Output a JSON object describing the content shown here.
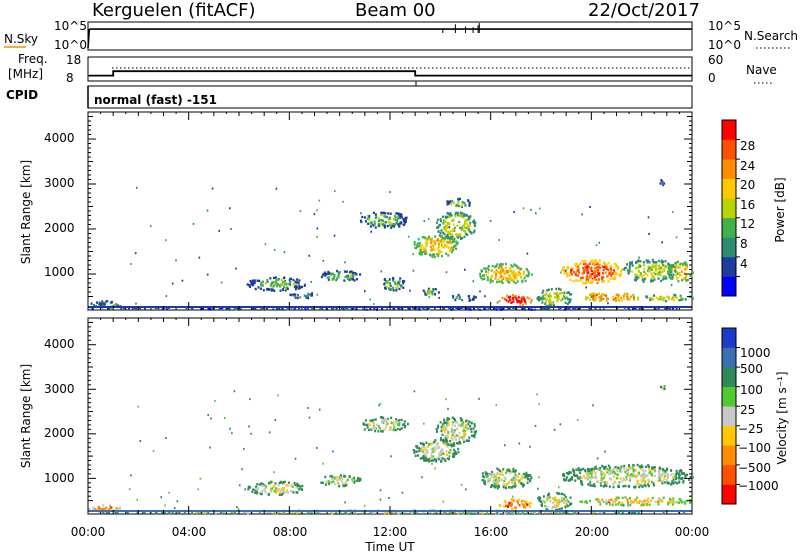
{
  "header": {
    "station": "Kerguelen (fitACF)",
    "beam": "Beam 00",
    "date": "22/Oct/2017"
  },
  "noise_panel": {
    "left_label": "N.Sky",
    "left_ticks": [
      "10^5",
      "10^0"
    ],
    "right_label": "N.Search",
    "right_ticks": [
      "10^5",
      "10^0"
    ]
  },
  "freq_panel": {
    "left_label_1": "Freq.",
    "left_label_2": "[MHz]",
    "left_ticks": [
      "18",
      "8"
    ],
    "right_label": "Nave",
    "right_ticks": [
      "60",
      "0"
    ],
    "cpid_label": "CPID",
    "mode_text": "normal (fast) -151"
  },
  "time_axis": {
    "ticks": [
      "00:00",
      "04:00",
      "08:00",
      "12:00",
      "16:00",
      "20:00",
      "00:00"
    ],
    "label": "Time UT"
  },
  "range_axis": {
    "label": "Slant Range [km]",
    "ticks": [
      "1000",
      "2000",
      "3000",
      "4000"
    ]
  },
  "power_colorbar": {
    "label": "Power [dB]",
    "ticks": [
      "4",
      "8",
      "12",
      "16",
      "20",
      "24",
      "28"
    ],
    "colors": [
      "#0000ff",
      "#1e3c9f",
      "#2f8a72",
      "#3fb24a",
      "#b8d400",
      "#ffc800",
      "#ff8c00",
      "#ff5000",
      "#ff0000"
    ]
  },
  "velocity_colorbar": {
    "label": "Velocity [m s⁻¹]",
    "ticks": [
      "1000",
      "500",
      "100",
      "25",
      "−25",
      "−100",
      "−500",
      "−1000"
    ],
    "colors": [
      "#1a3cc8",
      "#3c6eb4",
      "#2e8b57",
      "#52c832",
      "#c8c8c8",
      "#ffc800",
      "#ff8c00",
      "#ff5000",
      "#ff0000"
    ]
  },
  "chart_data": [
    {
      "type": "line",
      "name": "noise",
      "x_range_hours": [
        0,
        24
      ],
      "segments": [
        {
          "x": [
            0.0,
            0.05,
            0.1,
            24.0
          ],
          "y_log": [
            0,
            4.2,
            4.3,
            4.3
          ]
        }
      ]
    },
    {
      "type": "line",
      "name": "frequency",
      "x_range_hours": [
        0,
        24
      ],
      "y_range": [
        8,
        18
      ],
      "frequency_mhz": {
        "x": [
          0,
          1,
          1,
          13,
          13,
          24
        ],
        "y": [
          10,
          10,
          12,
          12,
          10,
          10
        ]
      }
    },
    {
      "type": "heatmap",
      "name": "power",
      "x_range_hours": [
        0,
        24
      ],
      "y_range_km": [
        200,
        4600
      ],
      "y_ticks": [
        1000,
        2000,
        3000,
        4000
      ],
      "blobs": [
        {
          "t0": 0.0,
          "t1": 23.8,
          "r0": 230,
          "r1": 290,
          "level": 1
        },
        {
          "t0": 0.0,
          "t1": 1.3,
          "r0": 250,
          "r1": 420,
          "level": 2
        },
        {
          "t0": 6.3,
          "t1": 8.6,
          "r0": 650,
          "r1": 950,
          "level": 3
        },
        {
          "t0": 8.0,
          "t1": 9.0,
          "r0": 480,
          "r1": 620,
          "level": 2
        },
        {
          "t0": 9.2,
          "t1": 10.8,
          "r0": 850,
          "r1": 1100,
          "level": 3
        },
        {
          "t0": 10.8,
          "t1": 12.7,
          "r0": 2050,
          "r1": 2400,
          "level": 3
        },
        {
          "t0": 11.6,
          "t1": 12.6,
          "r0": 650,
          "r1": 950,
          "level": 3
        },
        {
          "t0": 12.9,
          "t1": 14.7,
          "r0": 1400,
          "r1": 1900,
          "level": 5
        },
        {
          "t0": 13.8,
          "t1": 15.4,
          "r0": 1800,
          "r1": 2400,
          "level": 4
        },
        {
          "t0": 14.2,
          "t1": 15.2,
          "r0": 2500,
          "r1": 2700,
          "level": 3
        },
        {
          "t0": 13.2,
          "t1": 14.0,
          "r0": 550,
          "r1": 700,
          "level": 3
        },
        {
          "t0": 14.3,
          "t1": 15.4,
          "r0": 420,
          "r1": 560,
          "level": 3
        },
        {
          "t0": 15.5,
          "t1": 17.6,
          "r0": 800,
          "r1": 1250,
          "level": 5
        },
        {
          "t0": 16.3,
          "t1": 17.6,
          "r0": 320,
          "r1": 560,
          "level": 8
        },
        {
          "t0": 17.8,
          "t1": 19.2,
          "r0": 300,
          "r1": 700,
          "level": 4
        },
        {
          "t0": 18.8,
          "t1": 21.2,
          "r0": 820,
          "r1": 1330,
          "level": 7
        },
        {
          "t0": 21.2,
          "t1": 23.4,
          "r0": 850,
          "r1": 1350,
          "level": 4
        },
        {
          "t0": 23.0,
          "t1": 24.0,
          "r0": 850,
          "r1": 1300,
          "level": 5
        },
        {
          "t0": 19.5,
          "t1": 22.0,
          "r0": 420,
          "r1": 600,
          "level": 6
        },
        {
          "t0": 22.0,
          "t1": 24.0,
          "r0": 420,
          "r1": 560,
          "level": 4
        },
        {
          "t0": 22.7,
          "t1": 22.9,
          "r0": 3000,
          "r1": 3120,
          "level": 1
        }
      ]
    },
    {
      "type": "heatmap",
      "name": "velocity",
      "x_range_hours": [
        0,
        24
      ],
      "y_range_km": [
        200,
        4600
      ],
      "y_ticks": [
        1000,
        2000,
        3000,
        4000
      ],
      "blobs": [
        {
          "t0": 0.0,
          "t1": 1.3,
          "r0": 260,
          "r1": 420,
          "level": 6
        },
        {
          "t0": 0.0,
          "t1": 23.8,
          "r0": 230,
          "r1": 300,
          "level": 4
        },
        {
          "t0": 6.3,
          "t1": 8.6,
          "r0": 650,
          "r1": 950,
          "level": 4
        },
        {
          "t0": 9.2,
          "t1": 10.8,
          "r0": 850,
          "r1": 1100,
          "level": 4
        },
        {
          "t0": 10.8,
          "t1": 12.7,
          "r0": 2050,
          "r1": 2400,
          "level": 4
        },
        {
          "t0": 12.9,
          "t1": 14.7,
          "r0": 1400,
          "r1": 1900,
          "level": 4
        },
        {
          "t0": 13.8,
          "t1": 15.4,
          "r0": 1800,
          "r1": 2400,
          "level": 4
        },
        {
          "t0": 15.5,
          "t1": 17.6,
          "r0": 800,
          "r1": 1250,
          "level": 4
        },
        {
          "t0": 16.3,
          "t1": 17.6,
          "r0": 320,
          "r1": 560,
          "level": 7
        },
        {
          "t0": 17.8,
          "t1": 19.2,
          "r0": 300,
          "r1": 700,
          "level": 4
        },
        {
          "t0": 18.8,
          "t1": 24.0,
          "r0": 820,
          "r1": 1330,
          "level": 4
        },
        {
          "t0": 19.5,
          "t1": 24.0,
          "r0": 420,
          "r1": 600,
          "level": 5
        },
        {
          "t0": 22.7,
          "t1": 22.9,
          "r0": 3000,
          "r1": 3120,
          "level": 4
        }
      ]
    }
  ]
}
